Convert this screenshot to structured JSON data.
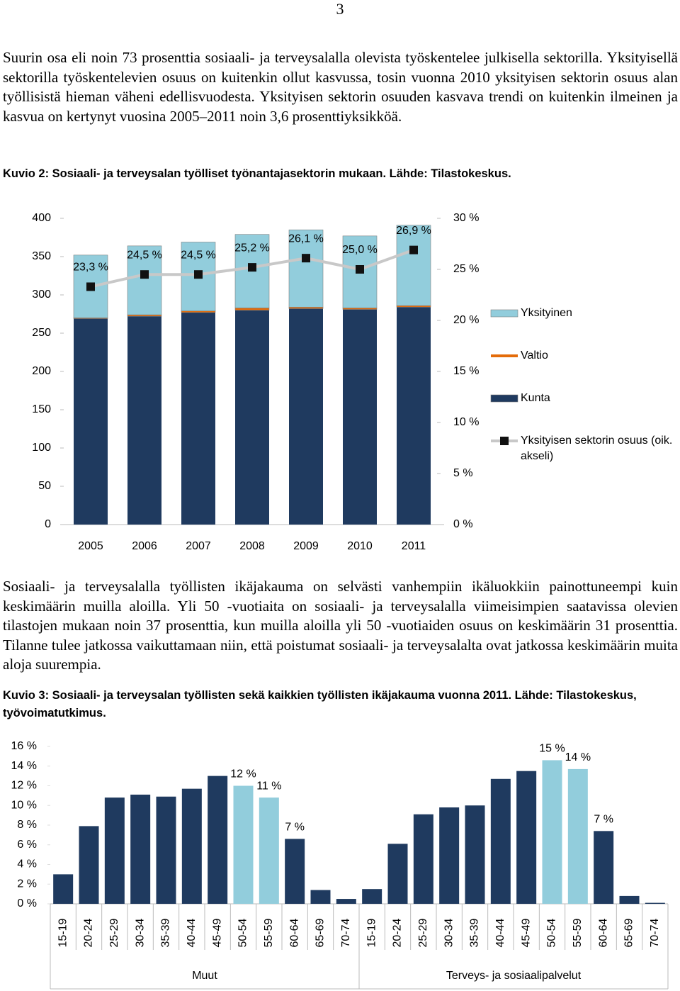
{
  "page_number": "3",
  "paragraphs": [
    "Suurin osa eli noin 73 prosenttia sosiaali- ja terveysalalla olevista työskentelee julkisella sektorilla. Yksityisellä sektorilla työskentelevien osuus on kuitenkin ollut kasvussa, tosin vuonna 2010 yksityisen sektorin osuus alan työllisistä hieman väheni edellisvuodesta. Yksityisen sektorin osuuden kasvava trendi on kuitenkin ilmeinen ja kasvua on kertynyt vuosina 2005–2011 noin 3,6 prosenttiyksikköä.",
    "Sosiaali- ja terveysalalla työllisten ikäjakauma on selvästi vanhempiin ikäluokkiin painottuneempi kuin keskimäärin muilla aloilla. Yli 50 -vuotiaita on sosiaali- ja terveysalalla viimeisimpien saatavissa olevien tilastojen mukaan noin 37 prosenttia, kun muilla aloilla yli 50 -vuotiaiden osuus on keskimäärin 31 prosenttia. Tilanne tulee jatkossa vaikuttamaan niin, että poistumat sosiaali- ja terveysalalta ovat jatkossa keskimäärin muita aloja suurempia."
  ],
  "captions": [
    "Kuvio 2: Sosiaali- ja terveysalan työlliset työnantajasektorin mukaan. Lähde: Tilastokeskus.",
    "Kuvio 3: Sosiaali- ja terveysalan työllisten sekä kaikkien työllisten ikäjakauma vuonna 2011. Lähde: Tilastokeskus, työvoimatutkimus."
  ],
  "chart_data": [
    {
      "type": "bar",
      "stacked": true,
      "categories": [
        "2005",
        "2006",
        "2007",
        "2008",
        "2009",
        "2010",
        "2011"
      ],
      "series": [
        {
          "name": "Kunta",
          "color": "#1f3a5f",
          "values": [
            269,
            272,
            277,
            280,
            282,
            281,
            284
          ]
        },
        {
          "name": "Valtio",
          "color": "#e46c0a",
          "values": [
            1,
            2,
            2,
            3,
            2,
            2,
            2
          ]
        },
        {
          "name": "Yksityinen",
          "color": "#92cddc",
          "values": [
            82,
            90,
            90,
            96,
            101,
            94,
            105
          ]
        },
        {
          "name": "Yksityisen sektorin osuus (oik. akseli)",
          "type": "line",
          "axis": "y2",
          "color": "#c8c8c8",
          "marker_color": "#111111",
          "values": [
            23.3,
            24.5,
            24.5,
            25.2,
            26.1,
            25.0,
            26.9
          ],
          "value_labels": [
            "23,3 %",
            "24,5 %",
            "24,5 %",
            "25,2 %",
            "26,1 %",
            "25,0 %",
            "26,9 %"
          ]
        }
      ],
      "ylim": [
        0,
        400
      ],
      "yticks": [
        0,
        50,
        100,
        150,
        200,
        250,
        300,
        350,
        400
      ],
      "y2lim": [
        0,
        30
      ],
      "y2ticks": [
        {
          "value": 0,
          "label": "0 %"
        },
        {
          "value": 5,
          "label": "5 %"
        },
        {
          "value": 10,
          "label": "10 %"
        },
        {
          "value": 15,
          "label": "15 %"
        },
        {
          "value": 20,
          "label": "20 %"
        },
        {
          "value": 25,
          "label": "25 %"
        },
        {
          "value": 30,
          "label": "30 %"
        }
      ],
      "legend": "right"
    },
    {
      "type": "bar",
      "ylim": [
        0,
        16
      ],
      "yticks": [
        {
          "value": 0,
          "label": "0 %"
        },
        {
          "value": 2,
          "label": "2 %"
        },
        {
          "value": 4,
          "label": "4 %"
        },
        {
          "value": 6,
          "label": "6 %"
        },
        {
          "value": 8,
          "label": "8 %"
        },
        {
          "value": 10,
          "label": "10 %"
        },
        {
          "value": 12,
          "label": "12 %"
        },
        {
          "value": 14,
          "label": "14 %"
        },
        {
          "value": 16,
          "label": "16 %"
        }
      ],
      "groups": [
        {
          "name": "Muut",
          "categories": [
            "15-19",
            "20-24",
            "25-29",
            "30-34",
            "35-39",
            "40-44",
            "45-49",
            "50-54",
            "55-59",
            "60-64",
            "65-69",
            "70-74"
          ],
          "values": [
            3.0,
            7.9,
            10.8,
            11.1,
            10.9,
            11.7,
            13.0,
            12.0,
            10.8,
            6.6,
            1.4,
            0.5
          ],
          "value_labels": [
            null,
            null,
            null,
            null,
            null,
            null,
            null,
            "12 %",
            "11 %",
            "7 %",
            null,
            null
          ],
          "colors": [
            "#1f3a5f",
            "#1f3a5f",
            "#1f3a5f",
            "#1f3a5f",
            "#1f3a5f",
            "#1f3a5f",
            "#1f3a5f",
            "#92cddc",
            "#92cddc",
            "#1f3a5f",
            "#1f3a5f",
            "#1f3a5f"
          ]
        },
        {
          "name": "Terveys- ja sosiaalipalvelut",
          "categories": [
            "15-19",
            "20-24",
            "25-29",
            "30-34",
            "35-39",
            "40-44",
            "45-49",
            "50-54",
            "55-59",
            "60-64",
            "65-69",
            "70-74"
          ],
          "values": [
            1.5,
            6.1,
            9.1,
            9.8,
            10.0,
            12.7,
            13.5,
            14.6,
            13.7,
            7.4,
            0.8,
            0.1
          ],
          "value_labels": [
            null,
            null,
            null,
            null,
            null,
            null,
            null,
            "15 %",
            "14 %",
            "7 %",
            null,
            null
          ],
          "colors": [
            "#1f3a5f",
            "#1f3a5f",
            "#1f3a5f",
            "#1f3a5f",
            "#1f3a5f",
            "#1f3a5f",
            "#1f3a5f",
            "#92cddc",
            "#92cddc",
            "#1f3a5f",
            "#1f3a5f",
            "#1f3a5f"
          ]
        }
      ]
    }
  ]
}
